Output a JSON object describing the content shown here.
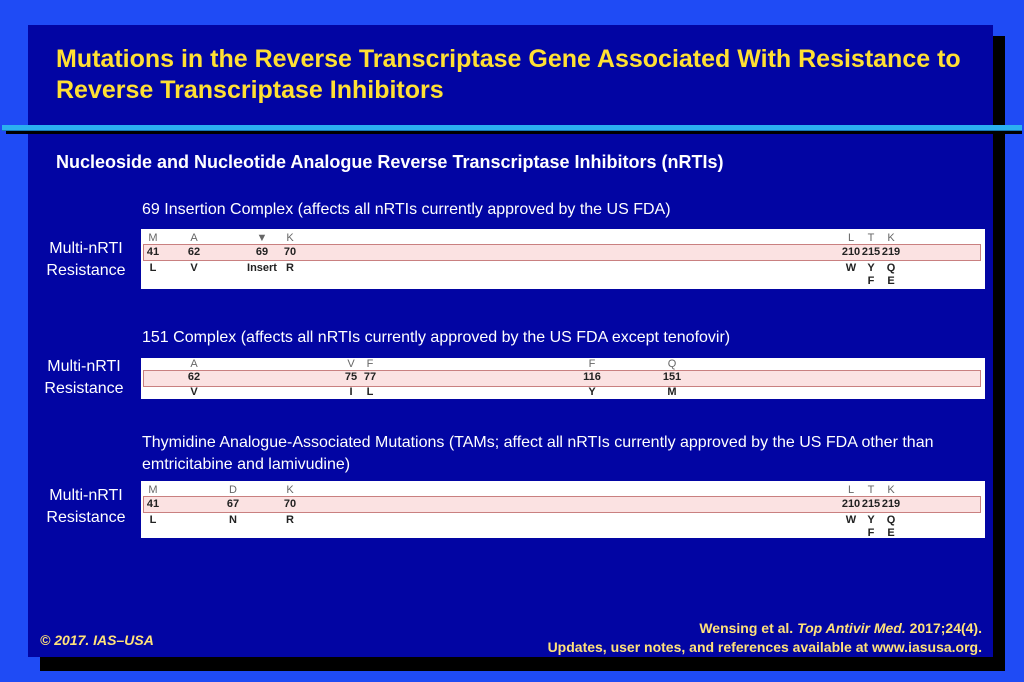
{
  "title": "Mutations in the Reverse Transcriptase Gene Associated With Resistance to Reverse Transcriptase Inhibitors",
  "subtitle": "Nucleoside and Nucleotide Analogue Reverse Transcriptase Inhibitors (nRTIs)",
  "colors": {
    "background": "#1f4bf5",
    "slide": "#0205a3",
    "title": "#ffe033",
    "band": "#fbe2e2"
  },
  "sections": [
    {
      "caption": "69 Insertion Complex (affects all nRTIs currently approved by the US FDA)",
      "side_line1": "Multi-nRTI",
      "side_line2": "Resistance",
      "sites": [
        {
          "wt": "M",
          "pos": "41",
          "mut": "L",
          "mut2": ""
        },
        {
          "wt": "A",
          "pos": "62",
          "mut": "V",
          "mut2": ""
        },
        {
          "wt": "▼",
          "pos": "69",
          "mut": "Insert",
          "mut2": ""
        },
        {
          "wt": "K",
          "pos": "70",
          "mut": "R",
          "mut2": ""
        },
        {
          "wt": "L",
          "pos": "210",
          "mut": "W",
          "mut2": ""
        },
        {
          "wt": "T",
          "pos": "215",
          "mut": "Y",
          "mut2": "F"
        },
        {
          "wt": "K",
          "pos": "219",
          "mut": "Q",
          "mut2": "E"
        }
      ]
    },
    {
      "caption": "151 Complex (affects all nRTIs currently approved by the US FDA except tenofovir)",
      "side_line1": "Multi-nRTI",
      "side_line2": "Resistance",
      "sites": [
        {
          "wt": "A",
          "pos": "62",
          "mut": "V",
          "mut2": ""
        },
        {
          "wt": "V",
          "pos": "75",
          "mut": "I",
          "mut2": ""
        },
        {
          "wt": "F",
          "pos": "77",
          "mut": "L",
          "mut2": ""
        },
        {
          "wt": "F",
          "pos": "116",
          "mut": "Y",
          "mut2": ""
        },
        {
          "wt": "Q",
          "pos": "151",
          "mut": "M",
          "mut2": ""
        }
      ]
    },
    {
      "caption": "Thymidine Analogue-Associated Mutations (TAMs; affect all nRTIs currently approved by the US FDA other than emtricitabine and lamivudine)",
      "side_line1": "Multi-nRTI",
      "side_line2": "Resistance",
      "sites": [
        {
          "wt": "M",
          "pos": "41",
          "mut": "L",
          "mut2": ""
        },
        {
          "wt": "D",
          "pos": "67",
          "mut": "N",
          "mut2": ""
        },
        {
          "wt": "K",
          "pos": "70",
          "mut": "R",
          "mut2": ""
        },
        {
          "wt": "L",
          "pos": "210",
          "mut": "W",
          "mut2": ""
        },
        {
          "wt": "T",
          "pos": "215",
          "mut": "Y",
          "mut2": "F"
        },
        {
          "wt": "K",
          "pos": "219",
          "mut": "Q",
          "mut2": "E"
        }
      ]
    }
  ],
  "footer": {
    "copyright": "© 2017. IAS–USA",
    "citation_authors": "Wensing et al. ",
    "citation_journal": "Top Antivir Med.",
    "citation_issue": " 2017;24(4).",
    "updates": "Updates, user notes, and references available at www.iasusa.org."
  }
}
